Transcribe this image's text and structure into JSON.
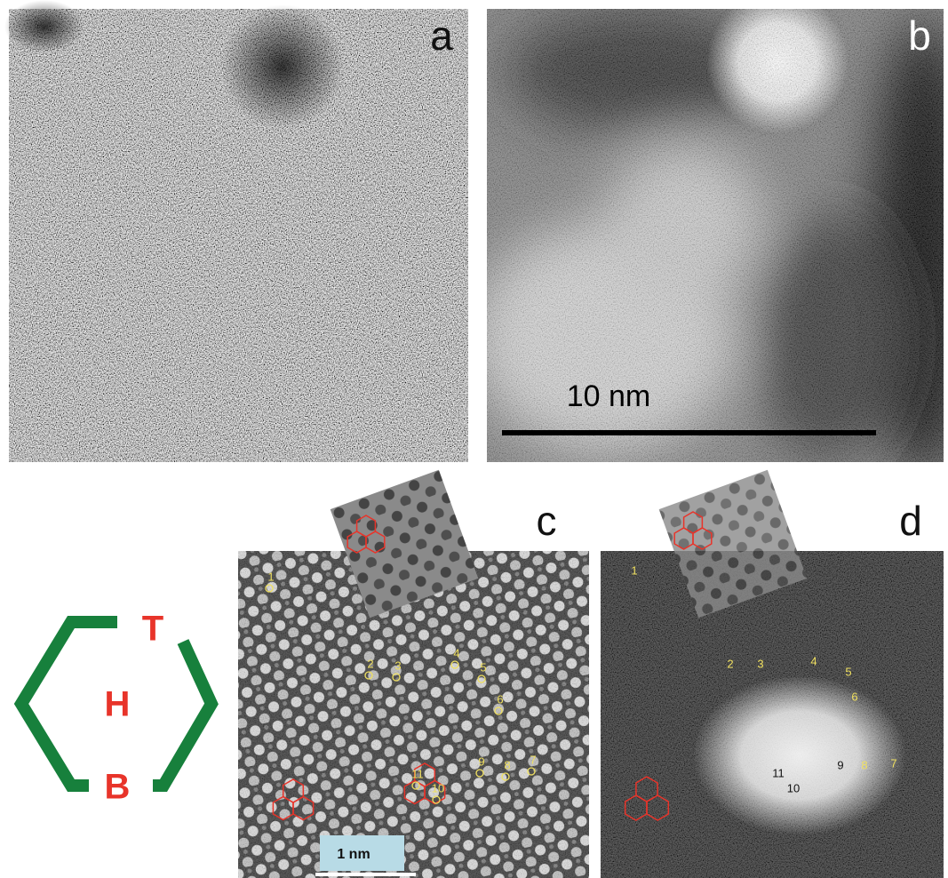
{
  "panels": {
    "a": {
      "label": "a"
    },
    "b": {
      "label": "b",
      "scale_bar": "10 nm"
    },
    "c": {
      "label": "c",
      "scale_bar": "1 nm",
      "markers": [
        "1",
        "2",
        "3",
        "4",
        "5",
        "6",
        "7",
        "8",
        "9",
        "10",
        "11"
      ]
    },
    "d": {
      "label": "d",
      "markers": [
        "1",
        "2",
        "3",
        "4",
        "5",
        "6",
        "7",
        "8",
        "9",
        "10",
        "11"
      ]
    }
  },
  "diagram": {
    "top": "T",
    "middle": "H",
    "bottom": "B"
  }
}
